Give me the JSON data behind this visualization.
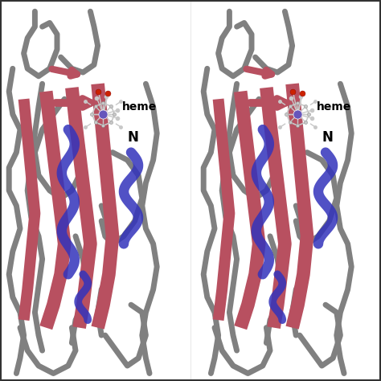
{
  "background_color": "#ffffff",
  "coil_color": "#808080",
  "beta_color": "#b85060",
  "helix_color": "#3333bb",
  "atom_C": "#c8c8c8",
  "atom_O": "#cc2200",
  "atom_Fe": "#6655bb",
  "atom_N": "#3333bb",
  "label_heme": "heme",
  "label_N": "N",
  "label_fontsize": 10,
  "figsize": [
    4.74,
    4.74
  ],
  "dpi": 100
}
